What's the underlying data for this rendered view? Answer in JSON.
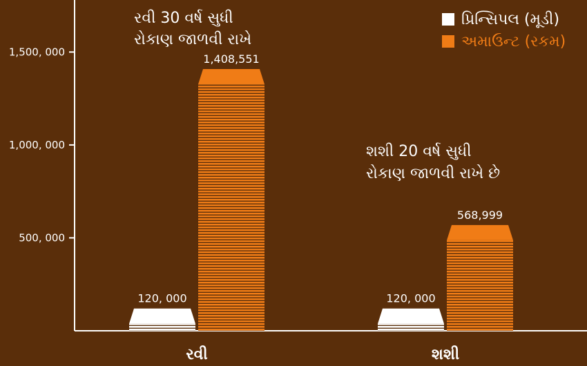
{
  "chart_data": {
    "type": "bar",
    "categories": [
      "રવી",
      "શશી"
    ],
    "series": [
      {
        "name": "પ્રિન્સિપલ (મૂડી)",
        "color": "#ffffff",
        "values": [
          120000,
          120000
        ]
      },
      {
        "name": "અમાઉન્ટ (રકમ)",
        "color": "#f07c16",
        "values": [
          1408551,
          568999
        ]
      }
    ],
    "data_labels": [
      [
        "120, 000",
        "1,408,551"
      ],
      [
        "120, 000",
        "568,999"
      ]
    ],
    "yticks": [
      500000,
      1000000,
      1500000
    ],
    "ytick_labels": [
      "500, 000",
      "1,000, 000",
      "1,500, 000"
    ],
    "ylim": [
      0,
      1780000
    ],
    "legend_position": "top-right",
    "annotations": [
      {
        "lines": [
          "રવી 30 વર્ષ સુધી",
          "રોકાણ જાળવી રાખે"
        ]
      },
      {
        "lines": [
          "શશી 20 વર્ષ સુધી",
          "રોકાણ જાળવી રાખે છે"
        ]
      }
    ],
    "grid": false,
    "background": "#5a2e0a"
  }
}
